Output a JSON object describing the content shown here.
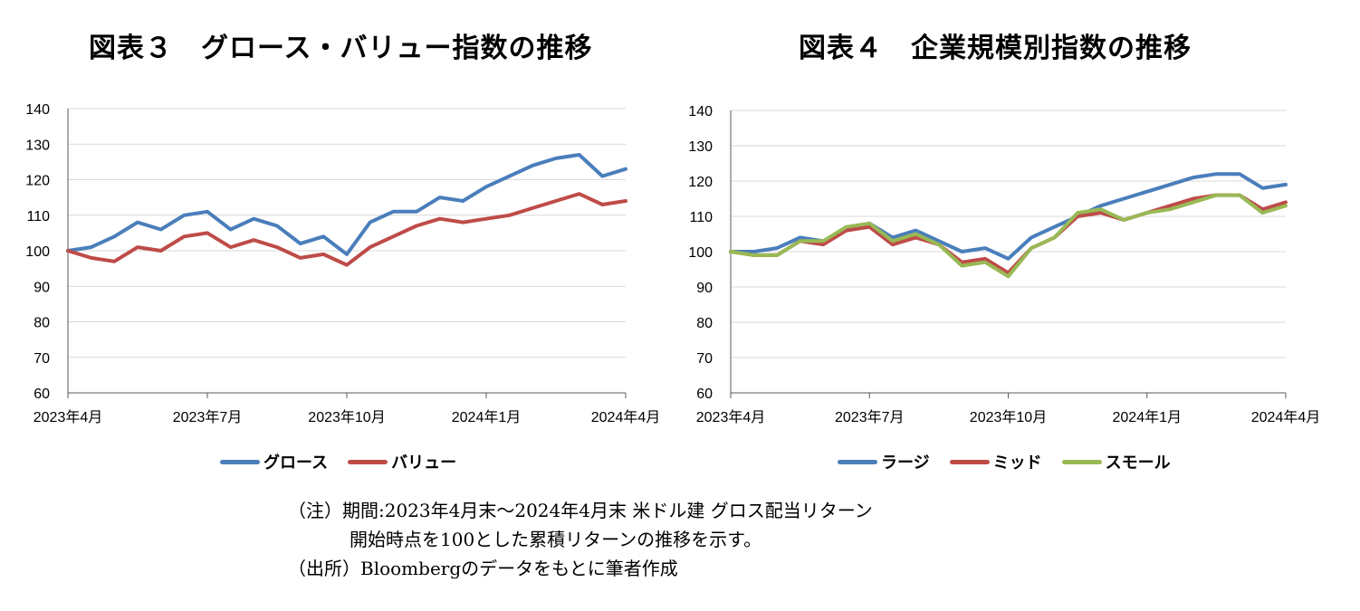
{
  "colors": {
    "blue": "#4a7ebb",
    "red": "#be4b48",
    "green": "#98b954",
    "grid": "#d9d9d9",
    "axis": "#595959"
  },
  "left": {
    "title": "図表３　グロース・バリュー指数の推移",
    "legend": [
      "グロース",
      "バリュー"
    ]
  },
  "right": {
    "title": "図表４　企業規模別指数の推移",
    "legend": [
      "ラージ",
      "ミッド",
      "スモール"
    ]
  },
  "notes": {
    "line1": "（注）期間:2023年4月末～2024年4月末 米ドル建 グロス配当リターン",
    "line2": "開始時点を100とした累積リターンの推移を示す。",
    "line3": "（出所）Bloombergのデータをもとに筆者作成"
  },
  "chart_data": [
    {
      "type": "line",
      "title": "図表３　グロース・バリュー指数の推移",
      "x_tick_labels": [
        "2023年4月",
        "2023年7月",
        "2023年10月",
        "2024年1月",
        "2024年4月"
      ],
      "y_ticks": [
        60,
        70,
        80,
        90,
        100,
        110,
        120,
        130,
        140
      ],
      "ylim": [
        60,
        140
      ],
      "xlim": [
        0,
        12
      ],
      "grid": true,
      "legend_position": "bottom",
      "series": [
        {
          "name": "グロース",
          "color": "#4a7ebb",
          "x": [
            0,
            0.5,
            1,
            1.5,
            2,
            2.5,
            3,
            3.5,
            4,
            4.5,
            5,
            5.5,
            6,
            6.5,
            7,
            7.5,
            8,
            8.5,
            9,
            9.5,
            10,
            10.5,
            11,
            11.5,
            12
          ],
          "values": [
            100,
            101,
            104,
            108,
            106,
            110,
            111,
            106,
            109,
            107,
            102,
            104,
            99,
            108,
            111,
            111,
            115,
            114,
            118,
            121,
            124,
            126,
            127,
            121,
            123
          ]
        },
        {
          "name": "バリュー",
          "color": "#be4b48",
          "x": [
            0,
            0.5,
            1,
            1.5,
            2,
            2.5,
            3,
            3.5,
            4,
            4.5,
            5,
            5.5,
            6,
            6.5,
            7,
            7.5,
            8,
            8.5,
            9,
            9.5,
            10,
            10.5,
            11,
            11.5,
            12
          ],
          "values": [
            100,
            98,
            97,
            101,
            100,
            104,
            105,
            101,
            103,
            101,
            98,
            99,
            96,
            101,
            104,
            107,
            109,
            108,
            109,
            110,
            112,
            114,
            116,
            113,
            114
          ]
        }
      ]
    },
    {
      "type": "line",
      "title": "図表４　企業規模別指数の推移",
      "x_tick_labels": [
        "2023年4月",
        "2023年7月",
        "2023年10月",
        "2024年1月",
        "2024年4月"
      ],
      "y_ticks": [
        60,
        70,
        80,
        90,
        100,
        110,
        120,
        130,
        140
      ],
      "ylim": [
        60,
        140
      ],
      "xlim": [
        0,
        12
      ],
      "grid": true,
      "legend_position": "bottom",
      "series": [
        {
          "name": "ラージ",
          "color": "#4a7ebb",
          "x": [
            0,
            0.5,
            1,
            1.5,
            2,
            2.5,
            3,
            3.5,
            4,
            4.5,
            5,
            5.5,
            6,
            6.5,
            7,
            7.5,
            8,
            8.5,
            9,
            9.5,
            10,
            10.5,
            11,
            11.5,
            12
          ],
          "values": [
            100,
            100,
            101,
            104,
            103,
            106,
            108,
            104,
            106,
            103,
            100,
            101,
            98,
            104,
            107,
            110,
            113,
            115,
            117,
            119,
            121,
            122,
            122,
            118,
            119
          ]
        },
        {
          "name": "ミッド",
          "color": "#be4b48",
          "x": [
            0,
            0.5,
            1,
            1.5,
            2,
            2.5,
            3,
            3.5,
            4,
            4.5,
            5,
            5.5,
            6,
            6.5,
            7,
            7.5,
            8,
            8.5,
            9,
            9.5,
            10,
            10.5,
            11,
            11.5,
            12
          ],
          "values": [
            100,
            99,
            99,
            103,
            102,
            106,
            107,
            102,
            104,
            102,
            97,
            98,
            94,
            101,
            104,
            110,
            111,
            109,
            111,
            113,
            115,
            116,
            116,
            112,
            114
          ]
        },
        {
          "name": "スモール",
          "color": "#98b954",
          "x": [
            0,
            0.5,
            1,
            1.5,
            2,
            2.5,
            3,
            3.5,
            4,
            4.5,
            5,
            5.5,
            6,
            6.5,
            7,
            7.5,
            8,
            8.5,
            9,
            9.5,
            10,
            10.5,
            11,
            11.5,
            12
          ],
          "values": [
            100,
            99,
            99,
            103,
            103,
            107,
            108,
            103,
            105,
            102,
            96,
            97,
            93,
            101,
            104,
            111,
            112,
            109,
            111,
            112,
            114,
            116,
            116,
            111,
            113
          ]
        }
      ]
    }
  ]
}
